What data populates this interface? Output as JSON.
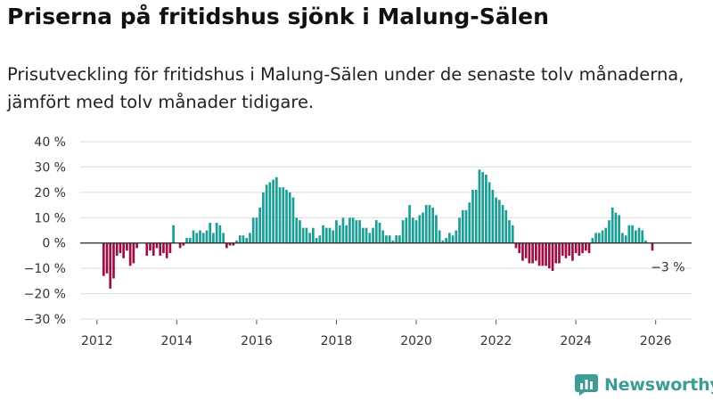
{
  "chart_data": {
    "type": "bar",
    "title": "Priserna på fritidshus sjönk i Malung-Sälen",
    "subtitle": "Prisutveckling för fritidshus i Malung-Sälen under de senaste tolv månaderna, jämfört med tolv månader tidigare.",
    "xlabel": "",
    "ylabel": "",
    "ylim": [
      -30,
      40
    ],
    "yticks": [
      -30,
      -20,
      -10,
      0,
      10,
      20,
      30,
      40
    ],
    "ytick_labels": [
      "−30 %",
      "−20 %",
      "−10 %",
      "0 %",
      "10 %",
      "20 %",
      "30 %",
      "40 %"
    ],
    "xlim": [
      2011.58,
      2026.9
    ],
    "xticks": [
      2012,
      2014,
      2016,
      2018,
      2020,
      2022,
      2024,
      2026
    ],
    "xtick_labels": [
      "2012",
      "2014",
      "2016",
      "2018",
      "2020",
      "2022",
      "2024",
      "2026"
    ],
    "grid": true,
    "positive_color": "#1a9e96",
    "negative_color": "#9e0e45",
    "annotation": {
      "label": "−3 %",
      "x": 2026.17,
      "y": -3
    },
    "start": {
      "year": 2012,
      "month": 1
    },
    "series": [
      {
        "name": "Prisutveckling",
        "values": [
          0,
          0,
          -13,
          -12,
          -18,
          -14,
          -5,
          -4,
          -6,
          -3,
          -9,
          -8,
          -2,
          0,
          0,
          -5,
          -3,
          -5,
          -2,
          -5,
          -4,
          -6,
          -4,
          7,
          0,
          -2,
          -1,
          2,
          2,
          5,
          4,
          5,
          4,
          5,
          8,
          4,
          8,
          7,
          4,
          -2,
          -1,
          -1,
          1,
          3,
          3,
          2,
          4,
          10,
          10,
          14,
          20,
          23,
          24,
          25,
          26,
          22,
          22,
          21,
          20,
          18,
          10,
          9,
          6,
          6,
          4,
          6,
          2,
          3,
          7,
          6,
          6,
          5,
          9,
          7,
          10,
          7,
          10,
          10,
          9,
          9,
          6,
          6,
          4,
          6,
          9,
          8,
          5,
          3,
          3,
          1,
          3,
          3,
          9,
          10,
          15,
          10,
          9,
          11,
          12,
          15,
          15,
          14,
          11,
          5,
          1,
          2,
          4,
          3,
          5,
          10,
          13,
          13,
          16,
          21,
          21,
          29,
          28,
          27,
          24,
          21,
          18,
          17,
          15,
          13,
          9,
          7,
          -2,
          -4,
          -7,
          -6,
          -8,
          -8,
          -7,
          -9,
          -9,
          -9,
          -10,
          -11,
          -8,
          -8,
          -5,
          -6,
          -5,
          -7,
          -4,
          -5,
          -4,
          -3,
          -4,
          2,
          4,
          4,
          5,
          6,
          9,
          14,
          12,
          11,
          4,
          3,
          7,
          7,
          5,
          6,
          5,
          1,
          0,
          -3
        ]
      }
    ]
  },
  "branding": {
    "name": "Newsworthy",
    "color": "#3d9c96"
  }
}
